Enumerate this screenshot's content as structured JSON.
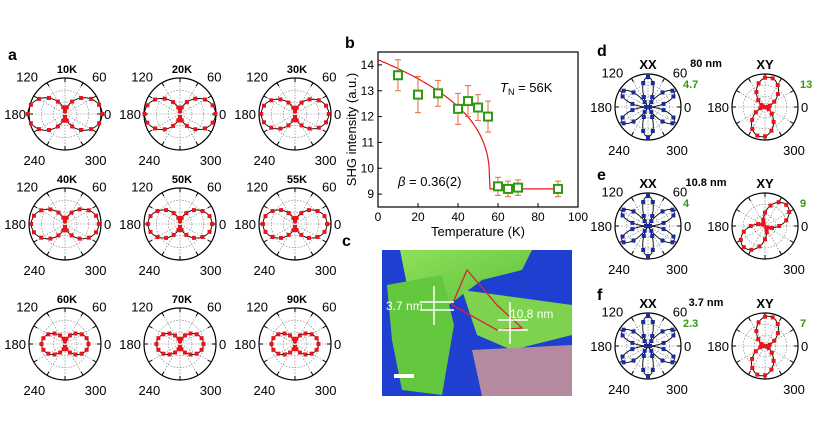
{
  "figure": {
    "panel_letters": {
      "a": "a",
      "b": "b",
      "c": "c",
      "d": "d",
      "e": "e",
      "f": "f"
    },
    "angle_labels": {
      "a120": "120",
      "a60": "60",
      "a180": "180",
      "a0": "0",
      "a240": "240",
      "a300": "300"
    },
    "colors": {
      "red": "#e8141b",
      "blue": "#1a2aa0",
      "green": "#2f9a10",
      "axis": "#000000",
      "grid": "#7a7a7a",
      "fit": "#e8141b"
    }
  },
  "panel_a": {
    "temps": [
      "10K",
      "20K",
      "30K",
      "40K",
      "50K",
      "55K",
      "60K",
      "70K",
      "90K"
    ]
  },
  "panel_b": {
    "tn_symbol": "T",
    "tn_sub": "N",
    "tn_text": "= 56K",
    "beta_symbol": "β",
    "beta_text": "= 0.36(2)"
  },
  "panel_c": {
    "label_left": "3.7 nm",
    "label_right": "10.8 nm"
  },
  "panel_dfe": {
    "rows": [
      {
        "title": "80 nm",
        "xx_label": "XX",
        "xy_label": "XY",
        "xx_scale": "4.7",
        "xy_scale": "13"
      },
      {
        "title": "10.8 nm",
        "xx_label": "XX",
        "xy_label": "XY",
        "xx_scale": "4",
        "xy_scale": "9"
      },
      {
        "title": "3.7 nm",
        "xx_label": "XX",
        "xy_label": "XY",
        "xx_scale": "2.3",
        "xy_scale": "7"
      }
    ]
  },
  "chart_data": [
    {
      "type": "scatter",
      "panel": "b",
      "title": "",
      "xlabel": "Temperature (K)",
      "ylabel": "SHG intensity (a.u.)",
      "xlim": [
        0,
        100
      ],
      "ylim": [
        8.5,
        14.5
      ],
      "xticks": [
        "0",
        "20",
        "40",
        "60",
        "80",
        "100"
      ],
      "yticks": [
        "9",
        "10",
        "11",
        "12",
        "13",
        "14"
      ],
      "x": [
        10,
        20,
        30,
        40,
        45,
        50,
        55,
        60,
        65,
        70,
        90
      ],
      "y": [
        13.6,
        12.85,
        12.9,
        12.3,
        12.6,
        12.35,
        12.0,
        9.3,
        9.2,
        9.25,
        9.2
      ],
      "yerr": [
        0.6,
        0.7,
        0.5,
        0.6,
        0.6,
        0.5,
        0.6,
        0.35,
        0.3,
        0.3,
        0.3
      ],
      "fit": {
        "label": "power-law fit",
        "tn": 56,
        "beta": 0.36
      }
    },
    {
      "type": "polar",
      "panel": "a",
      "series_shape": "two-lobe (0° / 180°)",
      "temperatures": [
        "10K",
        "20K",
        "30K",
        "40K",
        "50K",
        "55K",
        "60K",
        "70K",
        "90K"
      ],
      "lobe_amplitude": [
        1.0,
        0.95,
        0.9,
        0.9,
        0.85,
        0.85,
        0.6,
        0.6,
        0.6
      ]
    },
    {
      "type": "polar",
      "panel": "d-f",
      "series": [
        {
          "name": "XX",
          "thicknesses": [
            "80 nm",
            "10.8 nm",
            "3.7 nm"
          ],
          "shape": "six-fold",
          "scale": [
            "4.7",
            "4",
            "2.3"
          ]
        },
        {
          "name": "XY",
          "thicknesses": [
            "80 nm",
            "10.8 nm",
            "3.7 nm"
          ],
          "shape": "two-lobe",
          "scale": [
            "13",
            "9",
            "7"
          ]
        }
      ]
    }
  ]
}
